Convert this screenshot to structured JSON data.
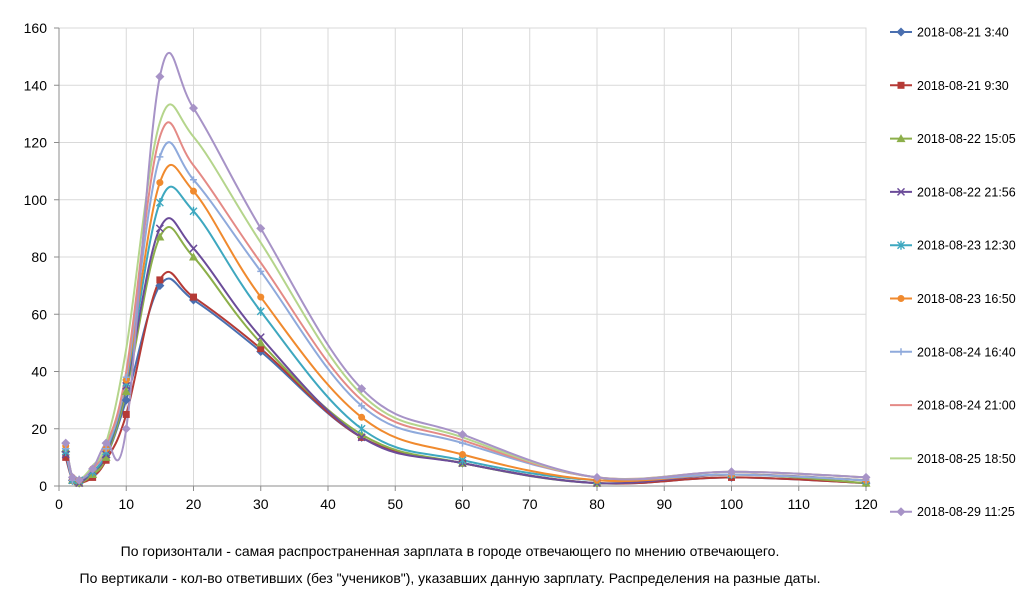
{
  "chart_data": {
    "type": "line",
    "title": "",
    "xlim": [
      0,
      120
    ],
    "ylim": [
      0,
      160
    ],
    "x_ticks": [
      0,
      10,
      20,
      30,
      40,
      50,
      60,
      70,
      80,
      90,
      100,
      110,
      120
    ],
    "y_ticks": [
      0,
      20,
      40,
      60,
      80,
      100,
      120,
      140,
      160
    ],
    "grid": true,
    "legend_position": "right",
    "x": [
      1,
      2,
      3,
      5,
      7,
      10,
      15,
      20,
      30,
      45,
      60,
      80,
      100,
      120
    ],
    "series": [
      {
        "name": "2018-08-21 3:40",
        "color": "#4a6fb0",
        "marker": "diamond",
        "values": [
          12,
          2,
          1,
          4,
          10,
          30,
          70,
          65,
          47,
          17,
          8,
          1,
          3,
          1
        ]
      },
      {
        "name": "2018-08-21 9:30",
        "color": "#b53a36",
        "marker": "square",
        "values": [
          10,
          2,
          1,
          3,
          9,
          25,
          72,
          66,
          48,
          17,
          8,
          1,
          3,
          1
        ]
      },
      {
        "name": "2018-08-22 15:05",
        "color": "#8caf4a",
        "marker": "triangle",
        "values": [
          13,
          2,
          1,
          4,
          10,
          33,
          87,
          80,
          50,
          18,
          8,
          1,
          4,
          1
        ]
      },
      {
        "name": "2018-08-22 21:56",
        "color": "#6b4c99",
        "marker": "x",
        "values": [
          11,
          2,
          1,
          5,
          11,
          35,
          90,
          83,
          52,
          17,
          8,
          1,
          4,
          2
        ]
      },
      {
        "name": "2018-08-23 12:30",
        "color": "#3ea8c0",
        "marker": "star",
        "values": [
          12,
          2,
          2,
          5,
          12,
          36,
          99,
          96,
          61,
          20,
          9,
          2,
          4,
          2
        ]
      },
      {
        "name": "2018-08-23 16:50",
        "color": "#f08a2e",
        "marker": "circle",
        "values": [
          14,
          3,
          2,
          6,
          13,
          37,
          106,
          103,
          66,
          24,
          11,
          2,
          4,
          2
        ]
      },
      {
        "name": "2018-08-24 16:40",
        "color": "#8faadc",
        "marker": "plus",
        "values": [
          13,
          2,
          2,
          6,
          13,
          38,
          115,
          107,
          75,
          28,
          15,
          3,
          4,
          2
        ]
      },
      {
        "name": "2018-08-24 21:00",
        "color": "#e48a86",
        "marker": "none",
        "values": [
          14,
          3,
          2,
          6,
          14,
          40,
          122,
          112,
          78,
          30,
          16,
          3,
          5,
          3
        ]
      },
      {
        "name": "2018-08-25 18:50",
        "color": "#b5d58c",
        "marker": "none",
        "values": [
          15,
          3,
          2,
          7,
          15,
          48,
          127,
          122,
          85,
          32,
          17,
          3,
          5,
          3
        ]
      },
      {
        "name": "2018-08-29 11:25",
        "color": "#a793c7",
        "marker": "diamond",
        "values": [
          15,
          3,
          2,
          6,
          15,
          20,
          143,
          132,
          90,
          34,
          18,
          3,
          5,
          3
        ]
      }
    ]
  },
  "caption": {
    "line1": "По горизонтали - самая распространенная зарплата в городе отвечающего по мнению отвечающего.",
    "line2": "По вертикали - кол-во ответивших (без \"учеников\"), указавших данную зарплату. Распределения на разные даты."
  }
}
